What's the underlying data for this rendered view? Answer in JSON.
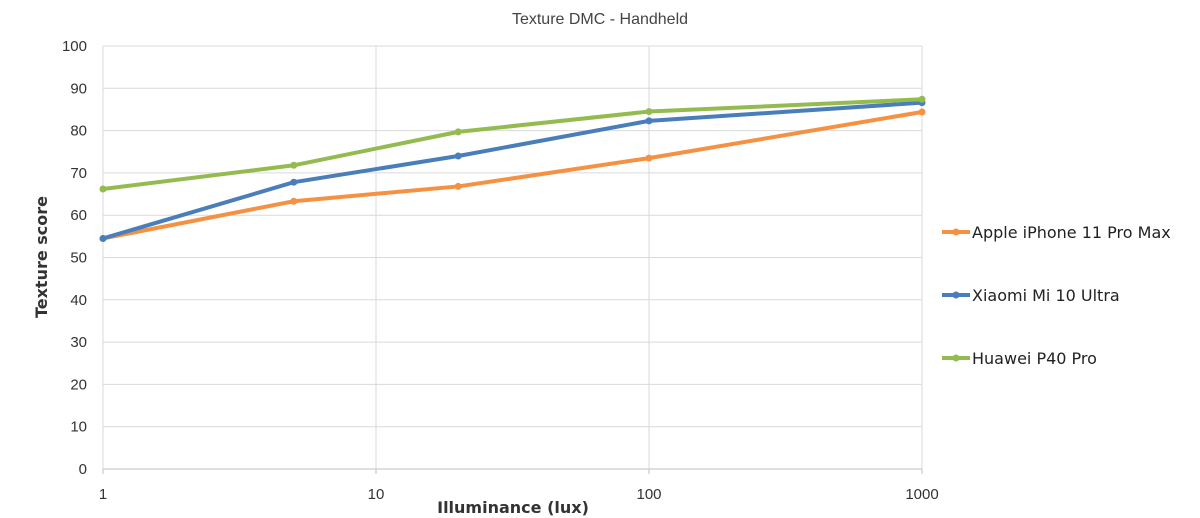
{
  "chart_data": {
    "type": "line",
    "title": "Texture DMC - Handheld",
    "xlabel": "Illuminance (lux)",
    "ylabel": "Texture  score",
    "xscale": "log",
    "xlim": [
      1,
      1000
    ],
    "ylim": [
      0,
      100
    ],
    "x_ticks": [
      1,
      10,
      100,
      1000
    ],
    "x_tick_labels": [
      "1",
      "10",
      "100",
      "1000"
    ],
    "y_ticks": [
      0,
      10,
      20,
      30,
      40,
      50,
      60,
      70,
      80,
      90,
      100
    ],
    "y_tick_labels": [
      "0",
      "10",
      "20",
      "30",
      "40",
      "50",
      "60",
      "70",
      "80",
      "90",
      "100"
    ],
    "grid": true,
    "legend_position": "right",
    "x": [
      1,
      5,
      20,
      100,
      1000
    ],
    "series": [
      {
        "name": "Apple iPhone 11 Pro Max",
        "color": "#f59142",
        "values": [
          54.5,
          63.3,
          66.8,
          73.5,
          84.4
        ]
      },
      {
        "name": "Xiaomi Mi 10 Ultra",
        "color": "#4a7ebb",
        "values": [
          54.5,
          67.8,
          74.0,
          82.3,
          86.6
        ]
      },
      {
        "name": "Huawei P40 Pro",
        "color": "#94bb4f",
        "values": [
          66.2,
          71.8,
          79.7,
          84.5,
          87.4
        ]
      }
    ]
  }
}
